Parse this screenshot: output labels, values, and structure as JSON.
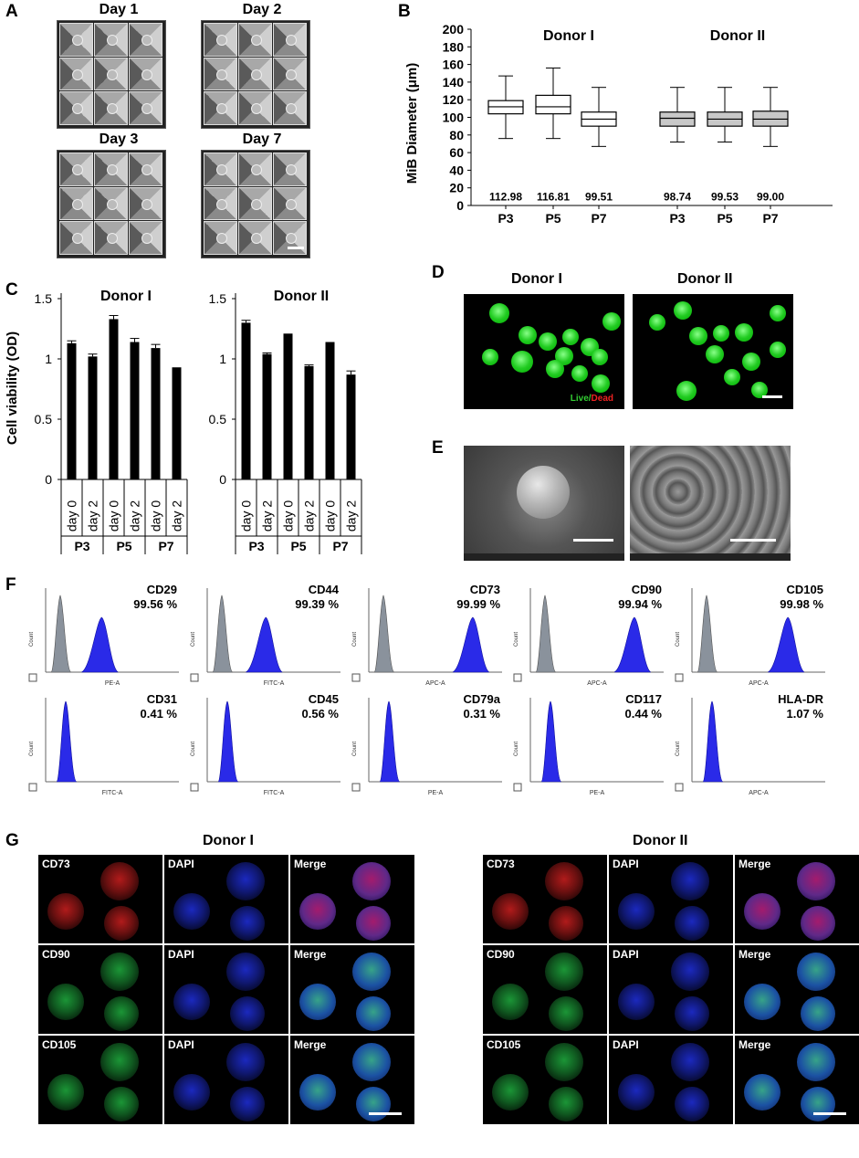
{
  "panels": {
    "A": {
      "label": "A",
      "days": [
        "Day 1",
        "Day 2",
        "Day 3",
        "Day 7"
      ]
    },
    "B": {
      "label": "B",
      "ylabel": "MiB Diameter (μm)",
      "yticks": [
        "0",
        "20",
        "40",
        "60",
        "80",
        "100",
        "120",
        "140",
        "160",
        "180",
        "200"
      ],
      "donors": [
        "Donor I",
        "Donor II"
      ],
      "categories": [
        "P3",
        "P5",
        "P7",
        "P3",
        "P5",
        "P7"
      ],
      "means": [
        "112.98",
        "116.81",
        "99.51",
        "98.74",
        "99.53",
        "99.00"
      ]
    },
    "C": {
      "label": "C",
      "ylabel": "Cell viability (OD)",
      "yticks": [
        "0",
        "0.5",
        "1",
        "1.5"
      ],
      "donors": [
        "Donor I",
        "Donor II"
      ],
      "daylabels": [
        "day 0",
        "day 2",
        "day 0",
        "day 2",
        "day 0",
        "day 2"
      ],
      "passages": [
        "P3",
        "P5",
        "P7"
      ]
    },
    "D": {
      "label": "D",
      "donors": [
        "Donor I",
        "Donor II"
      ],
      "live": "Live",
      "slash": "/",
      "dead": "Dead"
    },
    "E": {
      "label": "E"
    },
    "F": {
      "label": "F",
      "top": [
        {
          "marker": "CD29",
          "pct": "99.56 %",
          "axis": "PE-A"
        },
        {
          "marker": "CD44",
          "pct": "99.39 %",
          "axis": "FITC-A"
        },
        {
          "marker": "CD73",
          "pct": "99.99 %",
          "axis": "APC-A"
        },
        {
          "marker": "CD90",
          "pct": "99.94 %",
          "axis": "APC-A"
        },
        {
          "marker": "CD105",
          "pct": "99.98 %",
          "axis": "APC-A"
        }
      ],
      "bottom": [
        {
          "marker": "CD31",
          "pct": "0.41 %",
          "axis": "FITC-A"
        },
        {
          "marker": "CD45",
          "pct": "0.56 %",
          "axis": "FITC-A"
        },
        {
          "marker": "CD79a",
          "pct": "0.31 %",
          "axis": "PE-A"
        },
        {
          "marker": "CD117",
          "pct": "0.44 %",
          "axis": "PE-A"
        },
        {
          "marker": "HLA-DR",
          "pct": "1.07 %",
          "axis": "APC-A"
        }
      ]
    },
    "G": {
      "label": "G",
      "donors": [
        "Donor I",
        "Donor II"
      ],
      "rows": [
        [
          "CD73",
          "DAPI",
          "Merge"
        ],
        [
          "CD90",
          "DAPI",
          "Merge"
        ],
        [
          "CD105",
          "DAPI",
          "Merge"
        ]
      ]
    }
  },
  "chart_data": [
    {
      "type": "box",
      "title": "",
      "ylabel": "MiB Diameter (μm)",
      "ylim": [
        0,
        200
      ],
      "groups": [
        "Donor I",
        "Donor II"
      ],
      "categories": [
        "P3",
        "P5",
        "P7",
        "P3",
        "P5",
        "P7"
      ],
      "boxes": [
        {
          "min": 76,
          "q1": 104,
          "median": 112,
          "q3": 119,
          "max": 147,
          "mean": 112.98
        },
        {
          "min": 76,
          "q1": 104,
          "median": 112,
          "q3": 125,
          "max": 156,
          "mean": 116.81
        },
        {
          "min": 67,
          "q1": 90,
          "median": 98,
          "q3": 106,
          "max": 134,
          "mean": 99.51
        },
        {
          "min": 72,
          "q1": 90,
          "median": 99,
          "q3": 106,
          "max": 134,
          "mean": 98.74
        },
        {
          "min": 72,
          "q1": 90,
          "median": 98,
          "q3": 106,
          "max": 134,
          "mean": 99.53
        },
        {
          "min": 67,
          "q1": 90,
          "median": 98,
          "q3": 107,
          "max": 134,
          "mean": 99.0
        }
      ]
    },
    {
      "type": "bar",
      "title": "Donor I",
      "ylabel": "Cell viability (OD)",
      "ylim": [
        0,
        1.5
      ],
      "categories": [
        "day 0",
        "day 2",
        "day 0",
        "day 2",
        "day 0",
        "day 2"
      ],
      "groups": [
        "P3",
        "P5",
        "P7"
      ],
      "values": [
        1.13,
        1.02,
        1.33,
        1.14,
        1.09,
        0.93
      ],
      "errors": [
        0.02,
        0.02,
        0.03,
        0.03,
        0.03,
        0.0
      ]
    },
    {
      "type": "bar",
      "title": "Donor II",
      "ylabel": "Cell viability (OD)",
      "ylim": [
        0,
        1.5
      ],
      "categories": [
        "day 0",
        "day 2",
        "day 0",
        "day 2",
        "day 0",
        "day 2"
      ],
      "groups": [
        "P3",
        "P5",
        "P7"
      ],
      "values": [
        1.3,
        1.04,
        1.21,
        0.94,
        1.14,
        0.87
      ],
      "errors": [
        0.02,
        0.01,
        0.0,
        0.01,
        0.0,
        0.03
      ]
    }
  ]
}
